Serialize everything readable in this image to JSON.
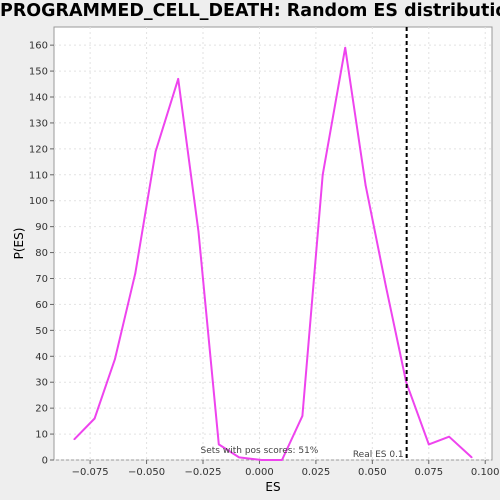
{
  "chart_data": {
    "type": "line",
    "title": "PROGRAMMED_CELL_DEATH: Random ES distribution",
    "xlabel": "ES",
    "ylabel": "P(ES)",
    "xlim": [
      -0.091,
      0.103
    ],
    "ylim": [
      0,
      167
    ],
    "xticks": [
      -0.075,
      -0.05,
      -0.025,
      0.0,
      0.025,
      0.05,
      0.075,
      0.1
    ],
    "xtick_labels": [
      "−0.075",
      "−0.050",
      "−0.025",
      "0.000",
      "0.025",
      "0.050",
      "0.075",
      "0.100"
    ],
    "yticks": [
      0,
      10,
      20,
      30,
      40,
      50,
      60,
      70,
      80,
      90,
      100,
      110,
      120,
      130,
      140,
      150,
      160
    ],
    "grid": true,
    "series": [
      {
        "color": "#ee44ee",
        "x": [
          -0.082,
          -0.073,
          -0.064,
          -0.055,
          -0.046,
          -0.036,
          -0.027,
          -0.018,
          -0.009,
          0.001,
          0.01,
          0.019,
          0.028,
          0.038,
          0.047,
          0.056,
          0.065,
          0.075,
          0.084,
          0.094
        ],
        "y": [
          8,
          16,
          39,
          72,
          119,
          147,
          88,
          6,
          1,
          0,
          0,
          17,
          110,
          159,
          106,
          67,
          30,
          6,
          9,
          1
        ]
      }
    ],
    "reference_line": {
      "x": 0.0652,
      "label": "Real ES 0.1",
      "color": "#000000",
      "style": "dashed"
    },
    "annotations": [
      {
        "text": "Sets with pos scores: 51%",
        "x": 0.0,
        "y": 2
      }
    ]
  }
}
